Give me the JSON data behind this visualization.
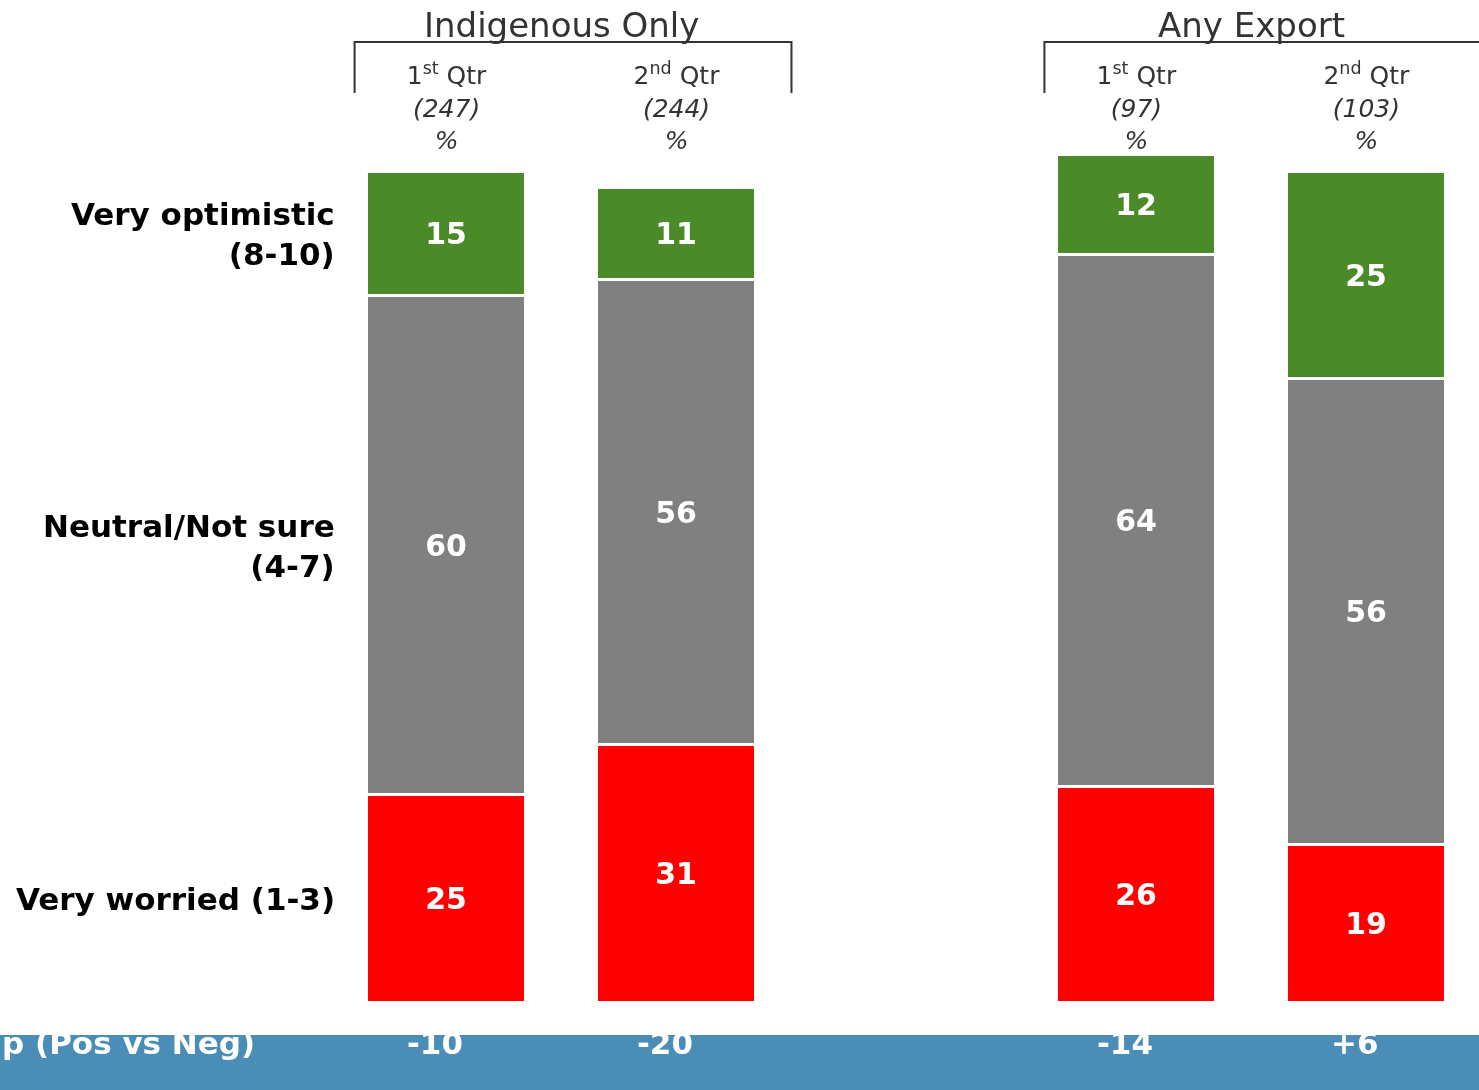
{
  "chart_data": {
    "type": "bar",
    "stacked": true,
    "data_labels": true,
    "legend": false,
    "categories": [
      "1$^{st}$ Qtr\n(247)\n%",
      "2$^{nd}$ Qtr\n(244)\n%",
      null,
      "1$^{st}$ Qtr\n(97)\n%",
      "2$^{nd}$ Qtr\n(103)\n%"
    ],
    "series": [
      {
        "name": "Very worried (1-3)",
        "color": "#ff0000",
        "values": [
          25,
          31,
          null,
          26,
          19
        ]
      },
      {
        "name": "Neutral/Not sure\n(4-7)",
        "color": "#808080",
        "values": [
          60,
          56,
          null,
          64,
          56
        ]
      },
      {
        "name": "Very optimistic\n(8-10)",
        "color": "#4a8a28",
        "values": [
          15,
          11,
          null,
          12,
          25
        ]
      }
    ],
    "annotations": [
      "Indigenous Only",
      "Any Export",
      "p (Pos vs Neg)",
      "-10",
      "-20",
      "-14",
      "+6"
    ]
  }
}
